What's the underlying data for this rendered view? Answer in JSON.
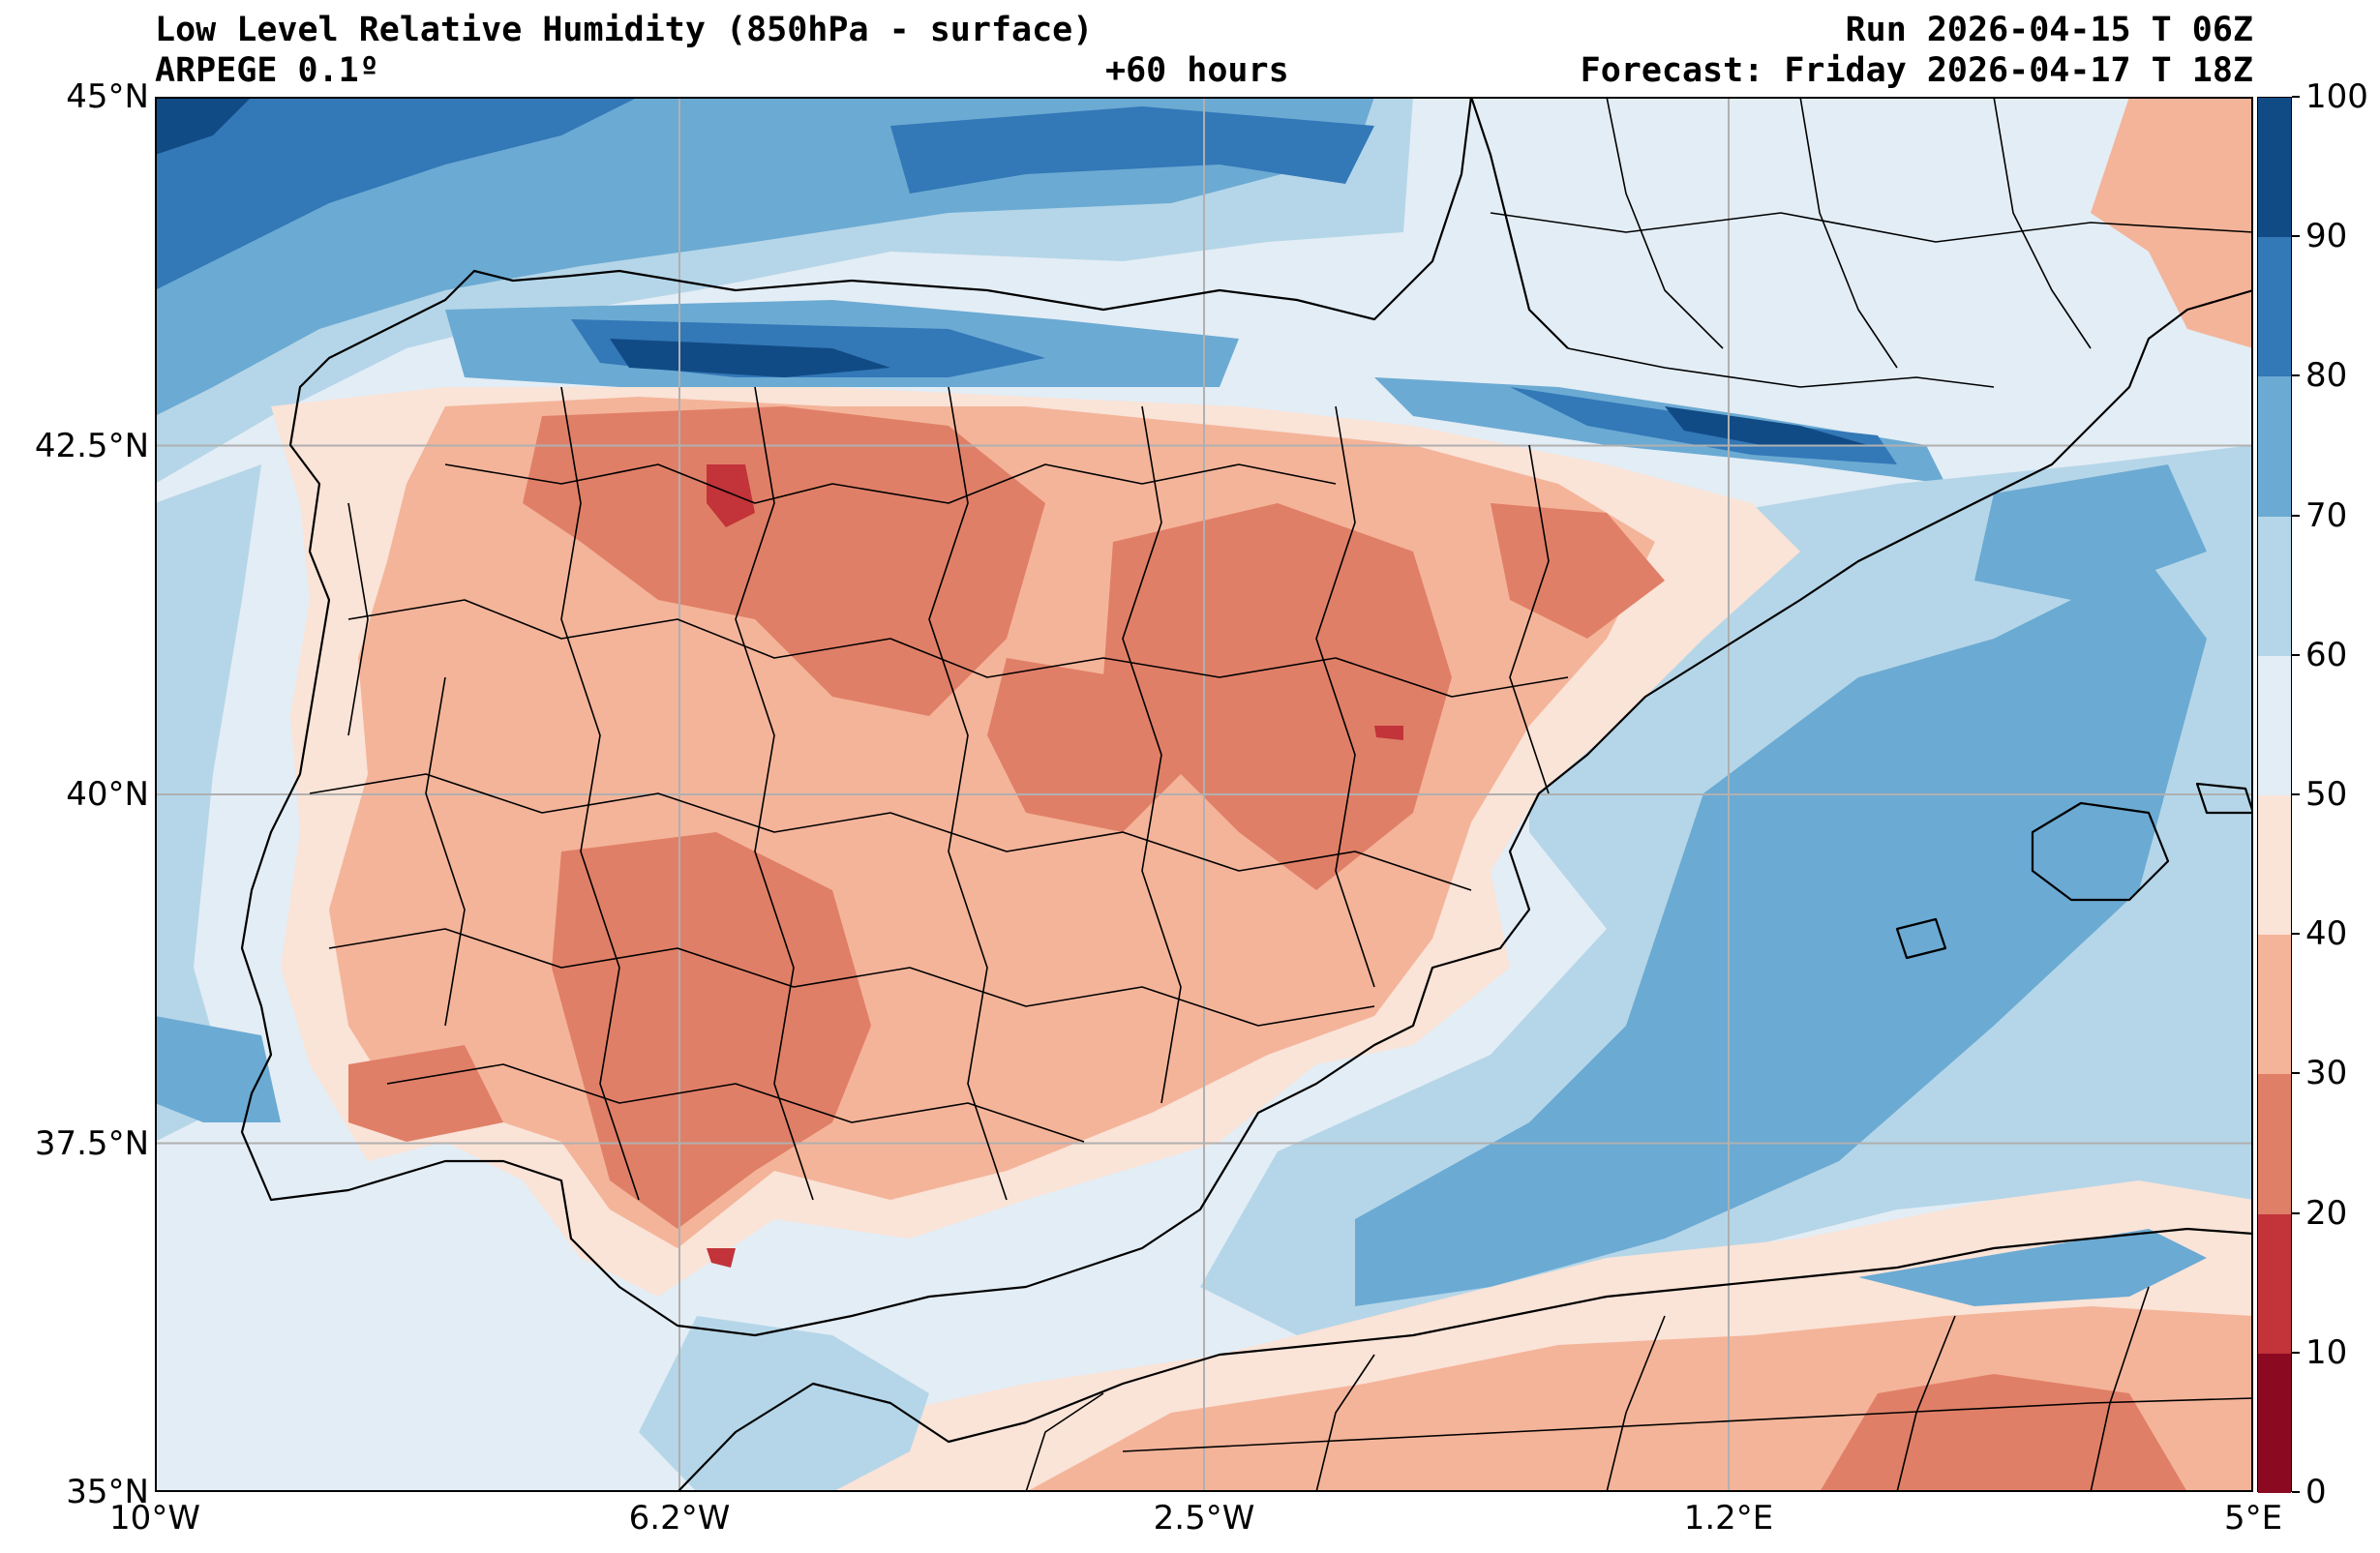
{
  "header": {
    "title": "Low Level Relative Humidity (850hPa - surface)",
    "model": "ARPEGE 0.1º",
    "lead_time": "+60 hours",
    "run": "Run 2026-04-15 T 06Z",
    "forecast": "Forecast: Friday 2026-04-17 T 18Z"
  },
  "map": {
    "lon_labels": [
      "10°W",
      "6.2°W",
      "2.5°W",
      "1.2°E",
      "5°E"
    ],
    "lat_labels": [
      "45°N",
      "42.5°N",
      "40°N",
      "37.5°N",
      "35°N"
    ],
    "lon_values": [
      -10,
      -6.25,
      -2.5,
      1.25,
      5
    ],
    "lat_values": [
      45,
      42.5,
      40,
      37.5,
      35
    ],
    "lon_range": [
      -10,
      5
    ],
    "lat_range": [
      35,
      45
    ],
    "gridlines": true
  },
  "colorbar": {
    "levels": [
      0,
      10,
      20,
      30,
      40,
      50,
      60,
      70,
      80,
      90,
      100
    ],
    "labels": [
      "0",
      "10",
      "20",
      "30",
      "40",
      "50",
      "60",
      "70",
      "80",
      "90",
      "100"
    ],
    "colors": [
      "#8b0a22",
      "#c2333a",
      "#e07f67",
      "#f4b49a",
      "#fae3d7",
      "#e3edf5",
      "#b5d6e8",
      "#6baad3",
      "#3378b7",
      "#114b86"
    ]
  },
  "colors": {
    "sea_base": "#e3edf5",
    "land_base": "#f4b49a",
    "boundary": "#000000",
    "grid": "#b0b0b0"
  }
}
